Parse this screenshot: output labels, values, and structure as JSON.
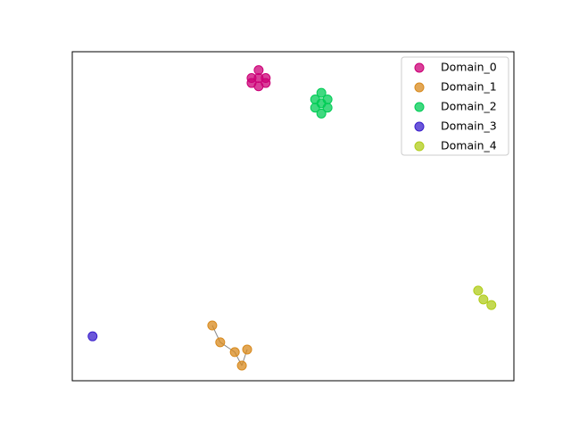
{
  "chart_data": {
    "type": "scatter",
    "xlim": [
      0,
      100
    ],
    "ylim": [
      0,
      100
    ],
    "legend": "upper right",
    "series": [
      {
        "name": "Domain_0",
        "color": "#cc0077",
        "x": [
          40.6,
          42.2,
          43.8,
          43.8,
          42.2,
          40.6,
          42.2
        ],
        "y": [
          92,
          94.4,
          92,
          90.5,
          89.5,
          90.5,
          92
        ]
      },
      {
        "name": "Domain_1",
        "color": "#d88a1e",
        "x": [
          31.7,
          33.5,
          36.8,
          39.6,
          38.4
        ],
        "y": [
          16.8,
          11.7,
          8.7,
          9.5,
          4.6
        ],
        "edges": [
          [
            0,
            1
          ],
          [
            1,
            2
          ],
          [
            2,
            4
          ],
          [
            4,
            3
          ]
        ]
      },
      {
        "name": "Domain_2",
        "color": "#00cc55",
        "x": [
          55,
          56.4,
          57.8,
          57.8,
          56.4,
          55,
          56.4
        ],
        "y": [
          85.5,
          87.5,
          85.5,
          83,
          81.2,
          83,
          84.3
        ]
      },
      {
        "name": "Domain_3",
        "color": "#3a1fcc",
        "x": [
          4.6
        ],
        "y": [
          13.5
        ]
      },
      {
        "name": "Domain_4",
        "color": "#b0cc1a",
        "x": [
          91.9,
          93.1,
          94.9
        ],
        "y": [
          27.4,
          24.7,
          23.0
        ]
      }
    ]
  }
}
